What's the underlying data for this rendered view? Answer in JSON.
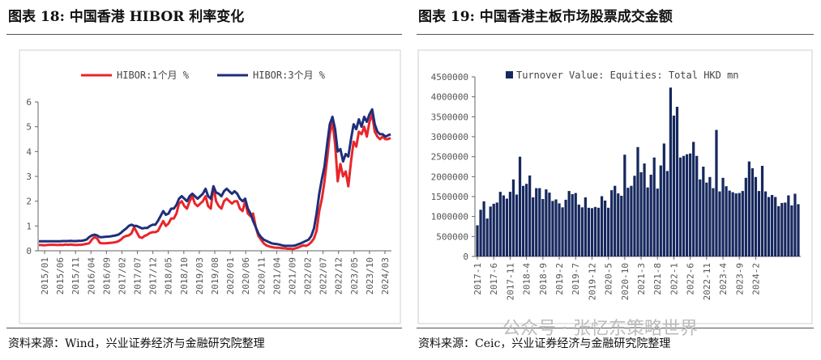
{
  "left": {
    "title": "图表 18:    中国香港 HIBOR 利率变化",
    "source": "资料来源：Wind，兴业证券经济与金融研究院整理"
  },
  "right": {
    "title": "图表 19:    中国香港主板市场股票成交金额",
    "source": "资料来源：Ceic，兴业证券经济与金融研究院整理"
  },
  "watermark": "公众号 · 张忆东策略世界",
  "colors": {
    "red": "#e8262b",
    "navy": "#1f2f7a",
    "bar": "#16285e"
  },
  "chart_data": [
    {
      "type": "line",
      "title": "",
      "ylim": [
        0,
        6
      ],
      "yticks": [
        "0",
        "1",
        "2",
        "3",
        "4",
        "5",
        "6"
      ],
      "xticks": [
        "2015/01",
        "2015/06",
        "2015/11",
        "2016/04",
        "2016/09",
        "2017/02",
        "2017/07",
        "2017/12",
        "2018/05",
        "2018/10",
        "2019/03",
        "2019/08",
        "2020/01",
        "2020/06",
        "2020/11",
        "2021/04",
        "2021/09",
        "2022/02",
        "2022/07",
        "2022/12",
        "2023/05",
        "2023/10",
        "2024/03"
      ],
      "legend_position": "top",
      "series": [
        {
          "name": "HIBOR:1个月 %",
          "color": "#e8262b",
          "values": [
            0.23,
            0.23,
            0.22,
            0.23,
            0.24,
            0.24,
            0.24,
            0.23,
            0.24,
            0.23,
            0.25,
            0.24,
            0.25,
            0.24,
            0.23,
            0.24,
            0.24,
            0.26,
            0.28,
            0.3,
            0.45,
            0.55,
            0.5,
            0.32,
            0.3,
            0.3,
            0.31,
            0.32,
            0.33,
            0.35,
            0.38,
            0.45,
            0.55,
            0.6,
            0.62,
            0.7,
            0.95,
            0.75,
            0.55,
            0.52,
            0.6,
            0.65,
            0.72,
            0.75,
            0.75,
            0.8,
            1.0,
            1.2,
            1.0,
            1.1,
            1.3,
            1.3,
            1.5,
            1.9,
            2.0,
            1.8,
            1.7,
            2.0,
            2.2,
            1.9,
            1.8,
            1.9,
            2.0,
            2.2,
            1.8,
            1.7,
            2.6,
            2.0,
            1.8,
            1.7,
            2.0,
            2.1,
            2.0,
            1.9,
            2.0,
            2.0,
            1.7,
            1.6,
            2.0,
            1.5,
            1.4,
            1.5,
            0.95,
            0.6,
            0.45,
            0.3,
            0.22,
            0.18,
            0.15,
            0.13,
            0.12,
            0.12,
            0.1,
            0.1,
            0.08,
            0.08,
            0.07,
            0.1,
            0.13,
            0.18,
            0.22,
            0.2,
            0.25,
            0.35,
            0.5,
            0.8,
            1.6,
            2.1,
            2.8,
            3.7,
            4.7,
            5.2,
            4.3,
            2.8,
            3.5,
            3.0,
            3.2,
            2.6,
            3.6,
            4.4,
            4.2,
            4.8,
            4.7,
            5.0,
            4.6,
            5.2,
            5.5,
            4.8,
            4.6,
            4.5,
            4.6,
            4.5,
            4.5,
            4.55
          ]
        },
        {
          "name": "HIBOR:3个月 %",
          "color": "#1f2f7a",
          "values": [
            0.38,
            0.38,
            0.38,
            0.38,
            0.38,
            0.38,
            0.38,
            0.38,
            0.38,
            0.39,
            0.39,
            0.39,
            0.4,
            0.39,
            0.39,
            0.4,
            0.4,
            0.42,
            0.45,
            0.55,
            0.62,
            0.65,
            0.62,
            0.55,
            0.55,
            0.56,
            0.57,
            0.58,
            0.6,
            0.62,
            0.65,
            0.72,
            0.82,
            0.9,
            1.0,
            1.05,
            1.0,
            1.0,
            0.95,
            0.9,
            0.92,
            0.92,
            1.0,
            1.05,
            1.05,
            1.2,
            1.4,
            1.6,
            1.45,
            1.5,
            1.7,
            1.7,
            1.85,
            2.1,
            2.2,
            2.1,
            2.0,
            2.2,
            2.3,
            2.2,
            2.1,
            2.2,
            2.3,
            2.5,
            2.2,
            2.1,
            2.6,
            2.35,
            2.3,
            2.2,
            2.4,
            2.5,
            2.4,
            2.3,
            2.4,
            2.3,
            2.1,
            2.0,
            2.1,
            1.7,
            1.5,
            1.2,
            0.95,
            0.7,
            0.55,
            0.45,
            0.4,
            0.35,
            0.3,
            0.28,
            0.27,
            0.25,
            0.22,
            0.2,
            0.2,
            0.2,
            0.2,
            0.22,
            0.26,
            0.3,
            0.35,
            0.4,
            0.45,
            0.6,
            0.9,
            1.5,
            2.3,
            2.9,
            3.4,
            4.3,
            5.1,
            5.4,
            4.9,
            4.0,
            4.1,
            3.6,
            3.9,
            3.8,
            4.5,
            5.1,
            4.9,
            5.3,
            5.0,
            5.4,
            5.2,
            5.5,
            5.7,
            5.1,
            4.8,
            4.7,
            4.7,
            4.6,
            4.65,
            4.7
          ]
        }
      ]
    },
    {
      "type": "bar",
      "title": "",
      "ylim": [
        0,
        4500000
      ],
      "yticks": [
        "0",
        "500000",
        "1000000",
        "1500000",
        "2000000",
        "2500000",
        "3000000",
        "3500000",
        "4000000",
        "4500000"
      ],
      "xticks": [
        "2017-1",
        "2017-6",
        "2017-11",
        "2018-4",
        "2018-9",
        "2019-2",
        "2019-7",
        "2019-12",
        "2020-5",
        "2020-10",
        "2021-3",
        "2021-8",
        "2022-1",
        "2022-6",
        "2022-11",
        "2023-4",
        "2023-9",
        "2024-2"
      ],
      "legend_position": "top-left",
      "series": [
        {
          "name": "Turnover Value: Equities: Total HKD mn",
          "color": "#16285e",
          "values": [
            780000,
            1170000,
            1380000,
            950000,
            1250000,
            1320000,
            1350000,
            1620000,
            1530000,
            1450000,
            1620000,
            1930000,
            1550000,
            2500000,
            1770000,
            1820000,
            2030000,
            1480000,
            1710000,
            1710000,
            1440000,
            1680000,
            1600000,
            1390000,
            1430000,
            1330000,
            1230000,
            1420000,
            1640000,
            1560000,
            1590000,
            1300000,
            1230000,
            1480000,
            1220000,
            1210000,
            1240000,
            1220000,
            1510000,
            1400000,
            1220000,
            1660000,
            1770000,
            1580000,
            1520000,
            2550000,
            1720000,
            1770000,
            2020000,
            2740000,
            2110000,
            2330000,
            1730000,
            2050000,
            2480000,
            1700000,
            2280000,
            2830000,
            2140000,
            4230000,
            3530000,
            3750000,
            2480000,
            2520000,
            2560000,
            2580000,
            2870000,
            2520000,
            1930000,
            2250000,
            1850000,
            1990000,
            1710000,
            3170000,
            1630000,
            1970000,
            1760000,
            1650000,
            1610000,
            1580000,
            1590000,
            1640000,
            1970000,
            2380000,
            2210000,
            1990000,
            1640000,
            2270000,
            1630000,
            1490000,
            1540000,
            1490000,
            1260000,
            1340000,
            1350000,
            1530000,
            1280000,
            1570000,
            1310000
          ]
        }
      ]
    }
  ]
}
